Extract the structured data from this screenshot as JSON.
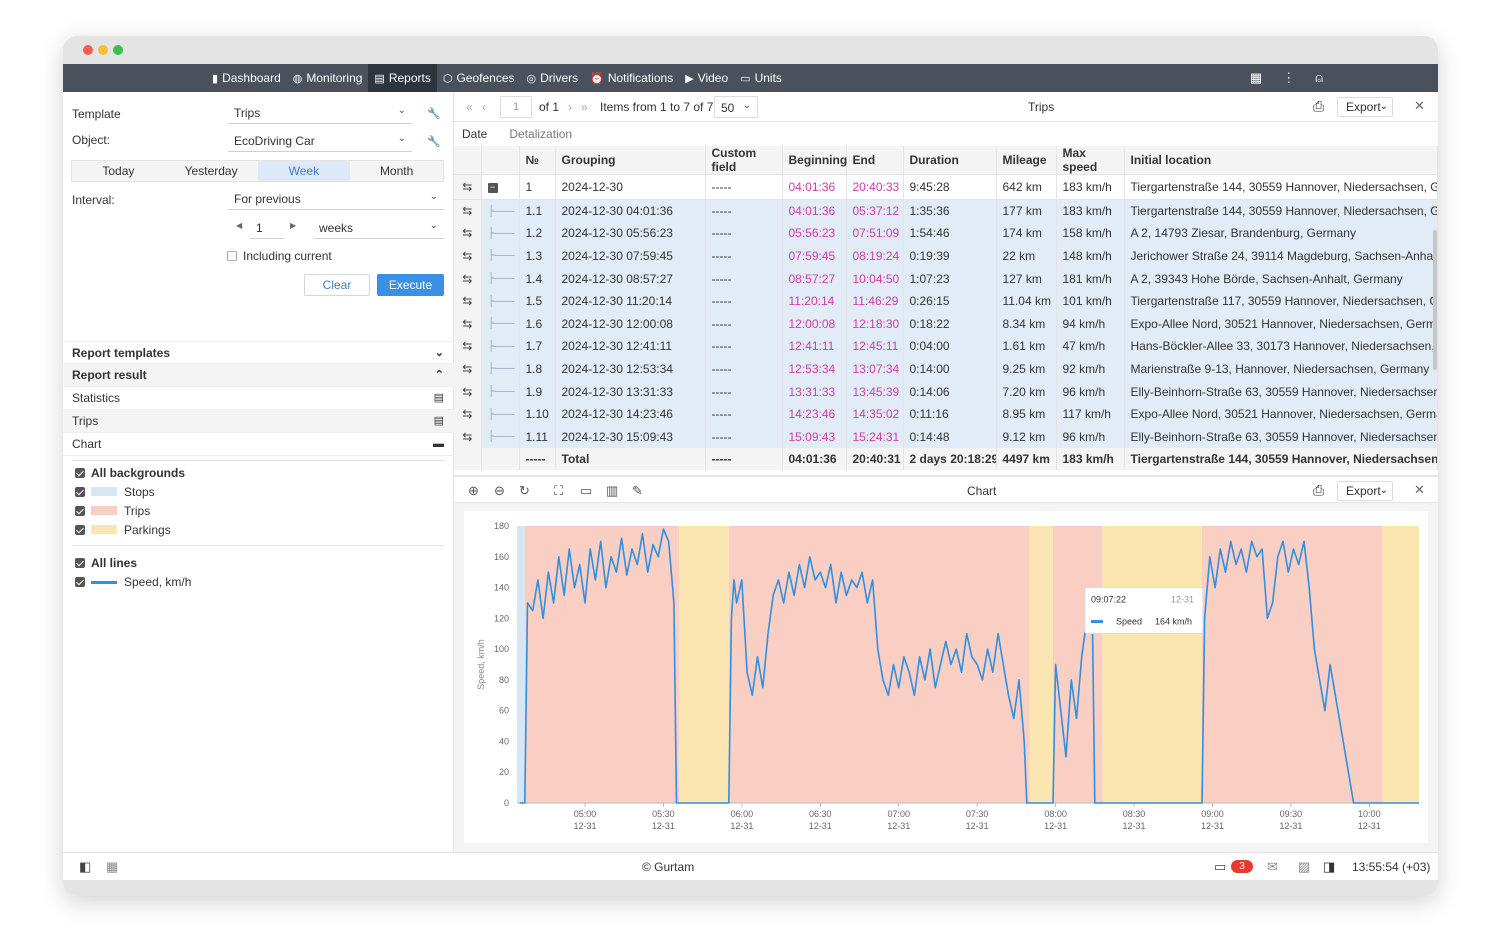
{
  "nav": {
    "items": [
      {
        "label": "Dashboard",
        "icon": "bar-chart-icon"
      },
      {
        "label": "Monitoring",
        "icon": "globe-icon"
      },
      {
        "label": "Reports",
        "icon": "report-icon"
      },
      {
        "label": "Geofences",
        "icon": "geofence-icon"
      },
      {
        "label": "Drivers",
        "icon": "steering-wheel-icon"
      },
      {
        "label": "Notifications",
        "icon": "alarm-icon"
      },
      {
        "label": "Video",
        "icon": "video-icon"
      },
      {
        "label": "Units",
        "icon": "bus-icon"
      }
    ],
    "active": "Reports"
  },
  "form": {
    "template_label": "Template",
    "template_value": "Trips",
    "object_label": "Object:",
    "object_value": "EcoDriving Car",
    "periods": [
      "Today",
      "Yesterday",
      "Week",
      "Month"
    ],
    "active_period": "Week",
    "interval_label": "Interval:",
    "interval_value": "For previous",
    "count": "1",
    "unit": "weeks",
    "including_current": "Including current",
    "clear": "Clear",
    "execute": "Execute"
  },
  "sections": {
    "report_templates": "Report templates",
    "report_result": "Report result",
    "statistics": "Statistics",
    "trips": "Trips",
    "chart": "Chart"
  },
  "legend": {
    "all_backgrounds": "All backgrounds",
    "stops": "Stops",
    "trips": "Trips",
    "parkings": "Parkings",
    "all_lines": "All lines",
    "speed": "Speed, km/h",
    "colors": {
      "stops": "#d6e6f5",
      "trips": "#f9cfc4",
      "parkings": "#fbe6b1",
      "speed": "#2f8fe0"
    }
  },
  "table_toolbar": {
    "page": "1",
    "of": "of 1",
    "items": "Items from 1 to 7 of 7",
    "per_page": "50",
    "title": "Trips",
    "export": "Export"
  },
  "tabs": {
    "date": "Date",
    "detalization": "Detalization"
  },
  "table": {
    "columns": [
      "№",
      "Grouping",
      "Custom field",
      "Beginning",
      "End",
      "Duration",
      "Mileage",
      "Max speed",
      "Initial location"
    ],
    "rows": [
      [
        "1",
        "2024-12-30",
        "-----",
        "04:01:36",
        "20:40:33",
        "9:45:28",
        "642 km",
        "183 km/h",
        "Tiergartenstraße 144, 30559 Hannover, Niedersachsen, Germany"
      ],
      [
        "1.1",
        "2024-12-30 04:01:36",
        "-----",
        "04:01:36",
        "05:37:12",
        "1:35:36",
        "177 km",
        "183 km/h",
        "Tiergartenstraße 144, 30559 Hannover, Niedersachsen, Germany"
      ],
      [
        "1.2",
        "2024-12-30 05:56:23",
        "-----",
        "05:56:23",
        "07:51:09",
        "1:54:46",
        "174 km",
        "158 km/h",
        "A 2, 14793 Ziesar, Brandenburg, Germany"
      ],
      [
        "1.3",
        "2024-12-30 07:59:45",
        "-----",
        "07:59:45",
        "08:19:24",
        "0:19:39",
        "22 km",
        "148 km/h",
        "Jerichower Straße 24, 39114 Magdeburg, Sachsen-Anhalt, Germany"
      ],
      [
        "1.4",
        "2024-12-30 08:57:27",
        "-----",
        "08:57:27",
        "10:04:50",
        "1:07:23",
        "127 km",
        "181 km/h",
        "A 2, 39343 Hohe Börde, Sachsen-Anhalt, Germany"
      ],
      [
        "1.5",
        "2024-12-30 11:20:14",
        "-----",
        "11:20:14",
        "11:46:29",
        "0:26:15",
        "11.04 km",
        "101 km/h",
        "Tiergartenstraße 117, 30559 Hannover, Niedersachsen, Germany"
      ],
      [
        "1.6",
        "2024-12-30 12:00:08",
        "-----",
        "12:00:08",
        "12:18:30",
        "0:18:22",
        "8.34 km",
        "94 km/h",
        "Expo-Allee Nord, 30521 Hannover, Niedersachsen, Germany"
      ],
      [
        "1.7",
        "2024-12-30 12:41:11",
        "-----",
        "12:41:11",
        "12:45:11",
        "0:04:00",
        "1.61 km",
        "47 km/h",
        "Hans-Böckler-Allee 33, 30173 Hannover, Niedersachsen, Germany"
      ],
      [
        "1.8",
        "2024-12-30 12:53:34",
        "-----",
        "12:53:34",
        "13:07:34",
        "0:14:00",
        "9.25 km",
        "92 km/h",
        "Marienstraße 9-13, Hannover, Niedersachsen, Germany"
      ],
      [
        "1.9",
        "2024-12-30 13:31:33",
        "-----",
        "13:31:33",
        "13:45:39",
        "0:14:06",
        "7.20 km",
        "96 km/h",
        "Elly-Beinhorn-Straße 63, 30559 Hannover, Niedersachsen, Germany"
      ],
      [
        "1.10",
        "2024-12-30 14:23:46",
        "-----",
        "14:23:46",
        "14:35:02",
        "0:11:16",
        "8.95 km",
        "117 km/h",
        "Expo-Allee Nord, 30521 Hannover, Niedersachsen, Germany"
      ],
      [
        "1.11",
        "2024-12-30 15:09:43",
        "-----",
        "15:09:43",
        "15:24:31",
        "0:14:48",
        "9.12 km",
        "96 km/h",
        "Elly-Beinhorn-Straße 63, 30559 Hannover, Niedersachsen, Germany"
      ]
    ],
    "total": [
      "-----",
      "Total",
      "-----",
      "04:01:36",
      "20:40:31",
      "2 days 20:18:29",
      "4497 km",
      "183 km/h",
      "Tiergartenstraße 144, 30559 Hannover, Niedersachsen, Germany"
    ]
  },
  "chart_toolbar": {
    "title": "Chart",
    "export": "Export"
  },
  "chart_data": {
    "type": "line",
    "ylabel": "Speed, km/h",
    "ylim": [
      0,
      180
    ],
    "yticks": [
      0,
      20,
      40,
      60,
      80,
      100,
      120,
      140,
      160,
      180
    ],
    "xticks": [
      {
        "t": "05:00",
        "d": "12-31",
        "min": 300
      },
      {
        "t": "05:30",
        "d": "12-31",
        "min": 330
      },
      {
        "t": "06:00",
        "d": "12-31",
        "min": 360
      },
      {
        "t": "06:30",
        "d": "12-31",
        "min": 390
      },
      {
        "t": "07:00",
        "d": "12-31",
        "min": 420
      },
      {
        "t": "07:30",
        "d": "12-31",
        "min": 450
      },
      {
        "t": "08:00",
        "d": "12-31",
        "min": 480
      },
      {
        "t": "08:30",
        "d": "12-31",
        "min": 510
      },
      {
        "t": "09:00",
        "d": "12-31",
        "min": 540
      },
      {
        "t": "09:30",
        "d": "12-31",
        "min": 570
      },
      {
        "t": "10:00",
        "d": "12-31",
        "min": 600
      }
    ],
    "xrange_min": [
      274,
      619
    ],
    "backgrounds": [
      {
        "type": "stop",
        "from": 274,
        "to": 277
      },
      {
        "type": "trip",
        "from": 277,
        "to": 336
      },
      {
        "type": "parking",
        "from": 336,
        "to": 355
      },
      {
        "type": "trip",
        "from": 355,
        "to": 470
      },
      {
        "type": "parking",
        "from": 470,
        "to": 479
      },
      {
        "type": "trip",
        "from": 479,
        "to": 498
      },
      {
        "type": "parking",
        "from": 498,
        "to": 536
      },
      {
        "type": "trip",
        "from": 536,
        "to": 605
      },
      {
        "type": "parking",
        "from": 605,
        "to": 619
      }
    ],
    "series": [
      {
        "name": "Speed",
        "points": [
          [
            275,
            0
          ],
          [
            277,
            0
          ],
          [
            278,
            130
          ],
          [
            280,
            125
          ],
          [
            282,
            145
          ],
          [
            284,
            120
          ],
          [
            286,
            150
          ],
          [
            288,
            130
          ],
          [
            290,
            160
          ],
          [
            292,
            135
          ],
          [
            294,
            165
          ],
          [
            296,
            140
          ],
          [
            298,
            155
          ],
          [
            300,
            130
          ],
          [
            302,
            165
          ],
          [
            304,
            145
          ],
          [
            306,
            170
          ],
          [
            308,
            140
          ],
          [
            310,
            160
          ],
          [
            312,
            150
          ],
          [
            314,
            172
          ],
          [
            316,
            148
          ],
          [
            318,
            165
          ],
          [
            320,
            155
          ],
          [
            322,
            175
          ],
          [
            324,
            150
          ],
          [
            326,
            168
          ],
          [
            328,
            160
          ],
          [
            330,
            178
          ],
          [
            332,
            170
          ],
          [
            333,
            150
          ],
          [
            334,
            130
          ],
          [
            335,
            0
          ],
          [
            355,
            0
          ],
          [
            356,
            120
          ],
          [
            357,
            145
          ],
          [
            358,
            130
          ],
          [
            360,
            145
          ],
          [
            362,
            85
          ],
          [
            364,
            70
          ],
          [
            366,
            95
          ],
          [
            368,
            75
          ],
          [
            370,
            110
          ],
          [
            372,
            135
          ],
          [
            374,
            145
          ],
          [
            376,
            130
          ],
          [
            378,
            150
          ],
          [
            380,
            135
          ],
          [
            382,
            155
          ],
          [
            384,
            140
          ],
          [
            386,
            160
          ],
          [
            388,
            145
          ],
          [
            390,
            150
          ],
          [
            392,
            140
          ],
          [
            394,
            155
          ],
          [
            396,
            130
          ],
          [
            398,
            150
          ],
          [
            400,
            135
          ],
          [
            402,
            145
          ],
          [
            404,
            140
          ],
          [
            406,
            150
          ],
          [
            408,
            130
          ],
          [
            410,
            145
          ],
          [
            412,
            100
          ],
          [
            414,
            80
          ],
          [
            416,
            70
          ],
          [
            418,
            90
          ],
          [
            420,
            75
          ],
          [
            422,
            95
          ],
          [
            424,
            85
          ],
          [
            426,
            70
          ],
          [
            428,
            95
          ],
          [
            430,
            80
          ],
          [
            432,
            100
          ],
          [
            434,
            75
          ],
          [
            436,
            90
          ],
          [
            438,
            105
          ],
          [
            440,
            90
          ],
          [
            442,
            100
          ],
          [
            444,
            85
          ],
          [
            446,
            110
          ],
          [
            448,
            95
          ],
          [
            450,
            90
          ],
          [
            452,
            80
          ],
          [
            454,
            100
          ],
          [
            456,
            85
          ],
          [
            458,
            110
          ],
          [
            460,
            90
          ],
          [
            462,
            70
          ],
          [
            464,
            55
          ],
          [
            466,
            80
          ],
          [
            468,
            40
          ],
          [
            469,
            0
          ],
          [
            479,
            0
          ],
          [
            480,
            90
          ],
          [
            482,
            60
          ],
          [
            484,
            30
          ],
          [
            486,
            80
          ],
          [
            488,
            55
          ],
          [
            490,
            95
          ],
          [
            492,
            120
          ],
          [
            494,
            130
          ],
          [
            495,
            0
          ],
          [
            536,
            0
          ],
          [
            537,
            120
          ],
          [
            539,
            160
          ],
          [
            541,
            140
          ],
          [
            543,
            165
          ],
          [
            545,
            150
          ],
          [
            547,
            170
          ],
          [
            549,
            155
          ],
          [
            551,
            165
          ],
          [
            553,
            150
          ],
          [
            555,
            170
          ],
          [
            557,
            160
          ],
          [
            559,
            165
          ],
          [
            561,
            120
          ],
          [
            563,
            130
          ],
          [
            565,
            160
          ],
          [
            567,
            170
          ],
          [
            569,
            150
          ],
          [
            571,
            165
          ],
          [
            573,
            155
          ],
          [
            575,
            170
          ],
          [
            577,
            140
          ],
          [
            579,
            100
          ],
          [
            581,
            80
          ],
          [
            583,
            60
          ],
          [
            585,
            90
          ],
          [
            587,
            70
          ],
          [
            589,
            50
          ],
          [
            591,
            30
          ],
          [
            593,
            10
          ],
          [
            594,
            0
          ],
          [
            619,
            0
          ]
        ],
        "color": "#2f8fe0"
      }
    ],
    "tooltip": {
      "time": "09:07:22",
      "date": "12-31",
      "series": "Speed",
      "value": "164 km/h"
    }
  },
  "footer": {
    "copyright": "© Gurtam",
    "notifications": "3",
    "time": "13:55:54 (+03)"
  }
}
